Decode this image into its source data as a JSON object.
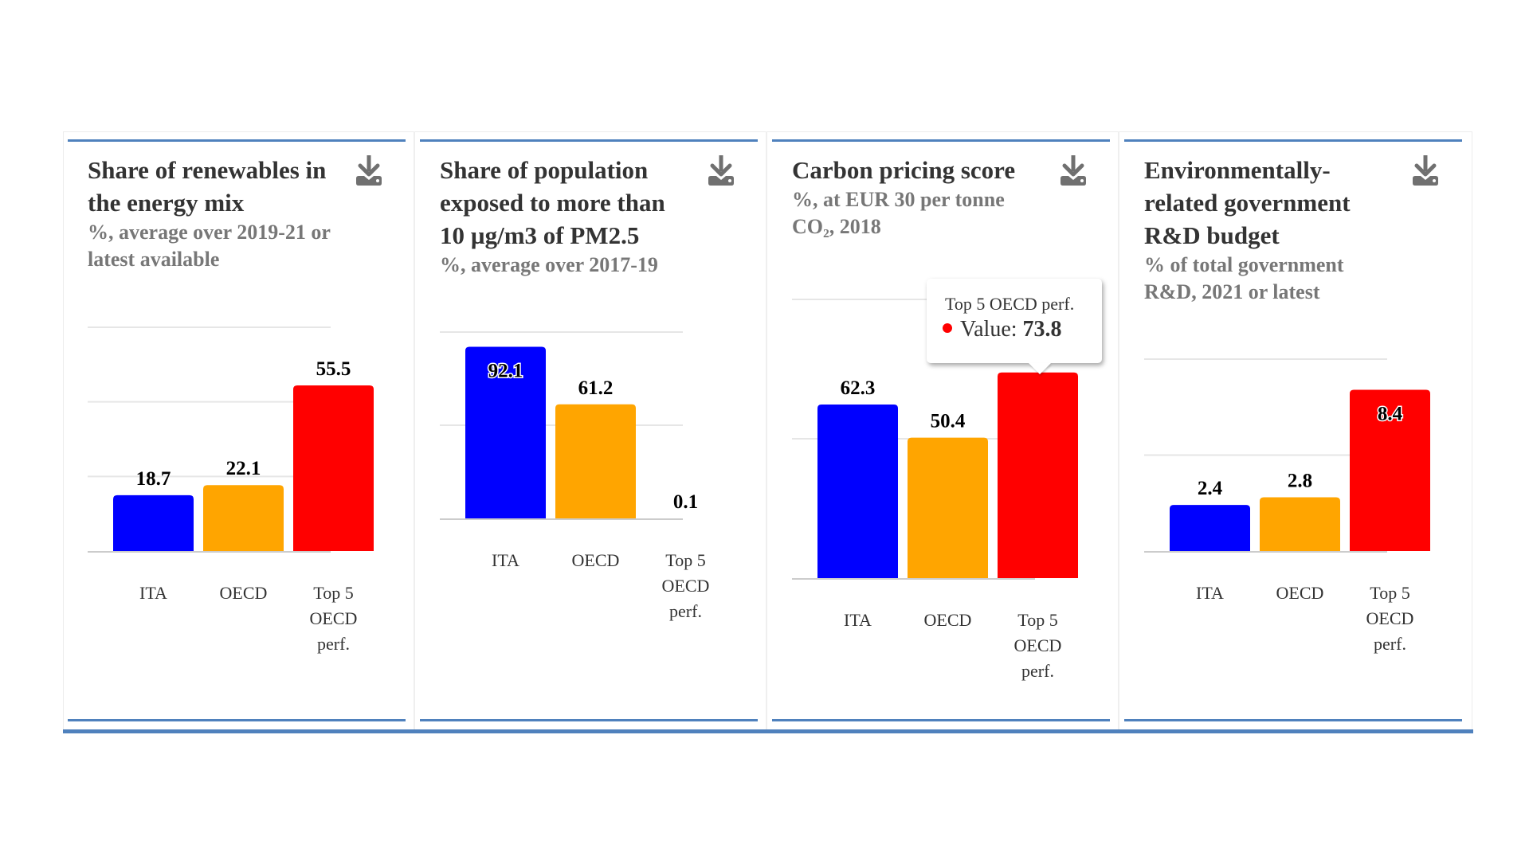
{
  "colors": {
    "accent_rule": "#4f81bd",
    "gridline": "#e6e6e6",
    "baseline": "#cccccc",
    "series": [
      "#0000ff",
      "#ffa500",
      "#ff0000"
    ]
  },
  "panels": [
    {
      "title": "Share of renewables in the energy mix",
      "subtitle": "%, average over 2019-21 or latest available",
      "download_icon": "download-icon"
    },
    {
      "title": "Share of population exposed to more than 10 µg/m3 of PM2.5",
      "subtitle": "%, average over 2017-19",
      "download_icon": "download-icon"
    },
    {
      "title": "Carbon pricing score",
      "subtitle": "%, at EUR 30 per tonne CO₂, 2018",
      "download_icon": "download-icon"
    },
    {
      "title": "Environmentally-related government R&D budget",
      "subtitle": "% of total government R&D, 2021 or latest",
      "download_icon": "download-icon"
    }
  ],
  "tooltip": {
    "series": "Top 5 OECD perf.",
    "label": "Value:",
    "value": "73.8"
  },
  "chart_data": [
    {
      "type": "bar",
      "title": "Share of renewables in the energy mix",
      "subtitle": "%, average over 2019-21 or latest available",
      "categories": [
        "ITA",
        "OECD",
        "Top 5 OECD perf."
      ],
      "values": [
        18.7,
        22.1,
        55.5
      ],
      "data_labels": [
        "18.7",
        "22.1",
        "55.5"
      ],
      "ylim": [
        0,
        75
      ],
      "gridlines": [
        25,
        50,
        75
      ],
      "grid": true,
      "legend": "none"
    },
    {
      "type": "bar",
      "title": "Share of population exposed to more than 10 µg/m3 of PM2.5",
      "subtitle": "%, average over 2017-19",
      "categories": [
        "ITA",
        "OECD",
        "Top 5 OECD perf."
      ],
      "values": [
        92.1,
        61.2,
        0.1
      ],
      "data_labels": [
        "92.1",
        "61.2",
        "0.1"
      ],
      "ylim": [
        0,
        100
      ],
      "gridlines": [
        50,
        100
      ],
      "grid": true,
      "legend": "none"
    },
    {
      "type": "bar",
      "title": "Carbon pricing score",
      "subtitle": "%, at EUR 30 per tonne CO₂, 2018",
      "categories": [
        "ITA",
        "OECD",
        "Top 5 OECD perf."
      ],
      "values": [
        62.3,
        50.4,
        73.8
      ],
      "data_labels": [
        "62.3",
        "50.4",
        "73.8"
      ],
      "ylim": [
        0,
        100
      ],
      "gridlines": [
        50,
        100
      ],
      "grid": true,
      "legend": "none"
    },
    {
      "type": "bar",
      "title": "Environmentally-related government R&D budget",
      "subtitle": "% of total government R&D, 2021 or latest",
      "categories": [
        "ITA",
        "OECD",
        "Top 5 OECD perf."
      ],
      "values": [
        2.4,
        2.8,
        8.4
      ],
      "data_labels": [
        "2.4",
        "2.8",
        "8.4"
      ],
      "ylim": [
        0,
        10
      ],
      "gridlines": [
        5,
        10
      ],
      "grid": true,
      "legend": "none"
    }
  ]
}
